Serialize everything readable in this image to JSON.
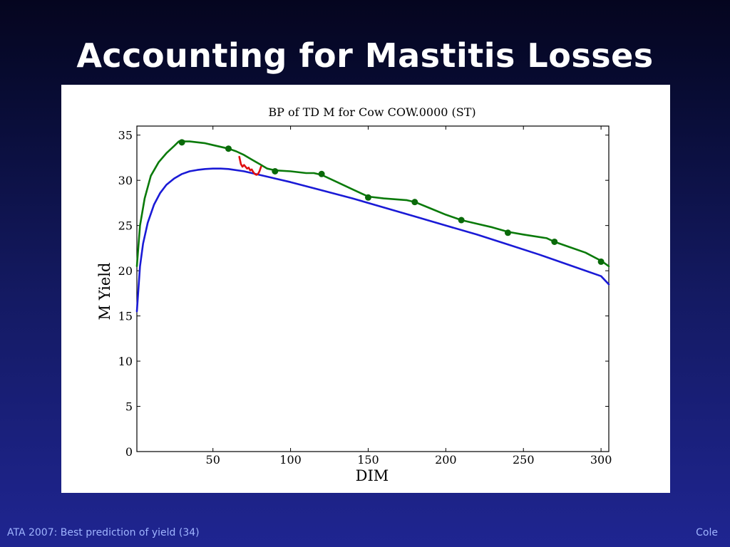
{
  "slide": {
    "title": "Accounting for Mastitis Losses",
    "footer_left": "ATA 2007: Best prediction of yield (34)",
    "footer_right": "Cole"
  },
  "colors": {
    "background": "#1a1f80",
    "text": "#ffffff",
    "footer_text": "#9fb4ff",
    "actual_curve": "#0a7a0a",
    "standard_curve": "#1a1ad6",
    "mastitis_segment": "#e01010",
    "test_points": "#0a6a0a"
  },
  "chart_data": {
    "type": "line",
    "title": "BP of TD M for Cow COW.0000 (ST)",
    "xlabel": "DIM",
    "ylabel": "M Yield",
    "xlim": [
      1,
      305
    ],
    "ylim": [
      0,
      36
    ],
    "xticks": [
      50,
      100,
      150,
      200,
      250,
      300
    ],
    "yticks": [
      0,
      5,
      10,
      15,
      20,
      25,
      30,
      35
    ],
    "grid": false,
    "series": [
      {
        "type": "line",
        "color": "#1a1ad6",
        "x": [
          1,
          3,
          5,
          8,
          12,
          16,
          20,
          25,
          30,
          35,
          40,
          45,
          50,
          55,
          60,
          70,
          80,
          90,
          100,
          120,
          140,
          160,
          180,
          200,
          220,
          240,
          260,
          280,
          300,
          305
        ],
        "y": [
          15.5,
          20.5,
          23.0,
          25.3,
          27.3,
          28.6,
          29.5,
          30.2,
          30.7,
          31.0,
          31.15,
          31.25,
          31.3,
          31.3,
          31.25,
          31.0,
          30.6,
          30.2,
          29.8,
          28.9,
          28.0,
          27.0,
          26.0,
          25.0,
          24.0,
          22.9,
          21.8,
          20.6,
          19.4,
          18.5
        ]
      },
      {
        "type": "line",
        "color": "#0a7a0a",
        "x": [
          1,
          3,
          6,
          10,
          15,
          20,
          25,
          28,
          30,
          32,
          35,
          40,
          45,
          50,
          55,
          60,
          65,
          70,
          75,
          80,
          85,
          90,
          100,
          110,
          115,
          120,
          130,
          140,
          150,
          160,
          175,
          180,
          190,
          200,
          210,
          220,
          230,
          240,
          250,
          265,
          270,
          280,
          290,
          300,
          305
        ],
        "y": [
          20.5,
          25.0,
          28.0,
          30.5,
          32.0,
          33.0,
          33.8,
          34.3,
          34.4,
          34.3,
          34.3,
          34.2,
          34.1,
          33.9,
          33.7,
          33.5,
          33.2,
          32.8,
          32.3,
          31.8,
          31.3,
          31.1,
          31.0,
          30.8,
          30.8,
          30.6,
          29.8,
          29.0,
          28.2,
          28.0,
          27.8,
          27.6,
          26.9,
          26.2,
          25.6,
          25.2,
          24.8,
          24.3,
          24.0,
          23.6,
          23.2,
          22.6,
          22.0,
          21.1,
          20.5
        ]
      },
      {
        "type": "line",
        "color": "#e01010",
        "x": [
          67,
          68,
          69,
          70,
          71,
          72,
          73,
          74,
          75,
          76,
          77,
          78,
          79,
          80,
          81
        ],
        "y": [
          32.6,
          31.8,
          31.5,
          31.7,
          31.5,
          31.3,
          31.4,
          31.1,
          31.2,
          30.9,
          30.7,
          30.6,
          30.7,
          31.0,
          31.5
        ]
      },
      {
        "type": "scatter",
        "color": "#0a6a0a",
        "x": [
          30,
          60,
          90,
          120,
          150,
          180,
          210,
          240,
          270,
          300
        ],
        "y": [
          34.2,
          33.5,
          31.0,
          30.7,
          28.1,
          27.6,
          25.6,
          24.2,
          23.2,
          21.0
        ]
      }
    ]
  }
}
